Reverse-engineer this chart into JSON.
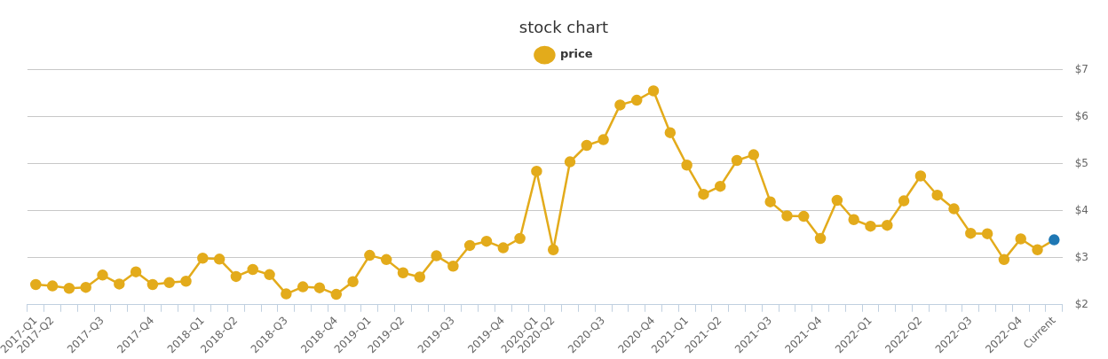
{
  "chart_data": {
    "type": "line",
    "title": "stock chart",
    "categories": [
      "2017-Q1",
      "2017-Q2",
      null,
      null,
      "2017-Q3",
      null,
      null,
      "2017-Q4",
      null,
      null,
      "2018-Q1",
      null,
      "2018-Q2",
      null,
      null,
      "2018-Q3",
      null,
      null,
      "2018-Q4",
      null,
      "2019-Q1",
      null,
      "2019-Q2",
      null,
      null,
      "2019-Q3",
      null,
      null,
      "2019-Q4",
      null,
      "2020-Q1",
      "2020-Q2",
      null,
      null,
      "2020-Q3",
      null,
      null,
      "2020-Q4",
      null,
      "2021-Q1",
      null,
      "2021-Q2",
      null,
      null,
      "2021-Q3",
      null,
      null,
      "2021-Q4",
      null,
      null,
      "2022-Q1",
      null,
      null,
      "2022-Q2",
      null,
      null,
      "2022-Q3",
      null,
      null,
      "2022-Q4",
      null,
      "Current"
    ],
    "series": [
      {
        "name": "price",
        "color": "#e3ab1b",
        "colors": [
          "#e3ab1b",
          "#e3ab1b",
          "#e3ab1b",
          "#e3ab1b",
          "#e3ab1b",
          "#e3ab1b",
          "#e3ab1b",
          "#e3ab1b",
          "#e3ab1b",
          "#e3ab1b",
          "#e3ab1b",
          "#e3ab1b",
          "#e3ab1b",
          "#e3ab1b",
          "#e3ab1b",
          "#e3ab1b",
          "#e3ab1b",
          "#e3ab1b",
          "#e3ab1b",
          "#e3ab1b",
          "#e3ab1b",
          "#e3ab1b",
          "#e3ab1b",
          "#e3ab1b",
          "#e3ab1b",
          "#e3ab1b",
          "#e3ab1b",
          "#e3ab1b",
          "#e3ab1b",
          "#e3ab1b",
          "#e3ab1b",
          "#e3ab1b",
          "#e3ab1b",
          "#e3ab1b",
          "#e3ab1b",
          "#e3ab1b",
          "#e3ab1b",
          "#e3ab1b",
          "#e3ab1b",
          "#e3ab1b",
          "#e3ab1b",
          "#e3ab1b",
          "#e3ab1b",
          "#e3ab1b",
          "#e3ab1b",
          "#e3ab1b",
          "#e3ab1b",
          "#e3ab1b",
          "#e3ab1b",
          "#e3ab1b",
          "#e3ab1b",
          "#e3ab1b",
          "#e3ab1b",
          "#e3ab1b",
          "#e3ab1b",
          "#e3ab1b",
          "#e3ab1b",
          "#e3ab1b",
          "#e3ab1b",
          "#e3ab1b",
          "#e3ab1b",
          "#1f78b4"
        ],
        "values": [
          2.43,
          2.4,
          2.35,
          2.37,
          2.63,
          2.44,
          2.7,
          2.43,
          2.47,
          2.5,
          2.99,
          2.97,
          2.6,
          2.75,
          2.64,
          2.23,
          2.38,
          2.36,
          2.22,
          2.49,
          3.05,
          2.96,
          2.68,
          2.59,
          3.04,
          2.82,
          3.26,
          3.35,
          3.21,
          3.41,
          4.84,
          3.17,
          5.04,
          5.39,
          5.51,
          6.25,
          6.35,
          6.55,
          5.66,
          4.97,
          4.35,
          4.52,
          5.07,
          5.19,
          4.19,
          3.89,
          3.88,
          3.41,
          4.22,
          3.81,
          3.67,
          3.69,
          4.21,
          4.74,
          4.33,
          4.04,
          3.52,
          3.51,
          2.96,
          3.4,
          3.17,
          3.38
        ]
      }
    ],
    "ylim": [
      2,
      7
    ],
    "yticks": [
      {
        "value": 2,
        "label": "$2"
      },
      {
        "value": 3,
        "label": "$3"
      },
      {
        "value": 4,
        "label": "$4"
      },
      {
        "value": 5,
        "label": "$5"
      },
      {
        "value": 6,
        "label": "$6"
      },
      {
        "value": 7,
        "label": "$7"
      }
    ],
    "grid": "y",
    "legend": "top",
    "marker": "circle",
    "line_style": "solid"
  }
}
